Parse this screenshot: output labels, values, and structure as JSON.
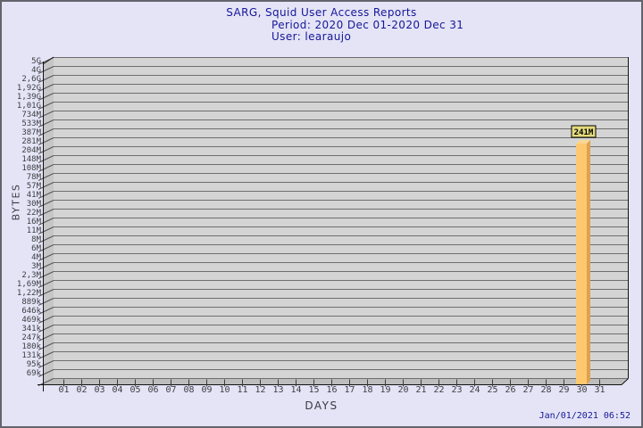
{
  "header": {
    "title": "SARG, Squid User Access Reports",
    "period": "Period: 2020 Dec 01-2020 Dec 31",
    "user": "User: learaujo"
  },
  "footer": {
    "generated": "Jan/01/2021 06:52"
  },
  "chart_data": {
    "type": "bar",
    "title": "SARG, Squid User Access Reports",
    "subtitle": [
      "Period: 2020 Dec 01-2020 Dec 31",
      "User: learaujo"
    ],
    "xlabel": "DAYS",
    "ylabel": "BYTES",
    "y_scale": "log",
    "grid": true,
    "x_labels": [
      "01",
      "02",
      "03",
      "04",
      "05",
      "06",
      "07",
      "08",
      "09",
      "10",
      "11",
      "12",
      "13",
      "14",
      "15",
      "16",
      "17",
      "18",
      "19",
      "20",
      "21",
      "22",
      "23",
      "24",
      "25",
      "26",
      "27",
      "28",
      "29",
      "30",
      "31"
    ],
    "y_axis_labels": [
      "5G",
      "4G",
      "2,6G",
      "1,92G",
      "1,39G",
      "1,01G",
      "734M",
      "533M",
      "387M",
      "281M",
      "204M",
      "148M",
      "108M",
      "78M",
      "57M",
      "41M",
      "30M",
      "22M",
      "16M",
      "11M",
      "8M",
      "6M",
      "4M",
      "3M",
      "2,3M",
      "1,69M",
      "1,22M",
      "889k",
      "646k",
      "469k",
      "341k",
      "247k",
      "180k",
      "131k",
      "95k",
      "69k"
    ],
    "ylim_bytes": [
      69000,
      5000000000
    ],
    "bars": [
      {
        "day": "30",
        "value_label": "241M",
        "value_bytes": 241000000
      }
    ],
    "colors": {
      "background": "#E4E4F6",
      "title_color": "#16169A",
      "plot_bg": "#D4D4D4",
      "grid_line": "#6E6E6E",
      "wall": "#C6C6C6",
      "floor": "#BDBDBD",
      "axis_line": "#111111",
      "tick_text": "#3C3C42",
      "bar_front": "#FDC870",
      "bar_side": "#DFA24B",
      "bar_top": "#F9D795",
      "annotation_bg": "#E4DA7E",
      "annotation_border": "#000000",
      "annotation_text": "#000000"
    }
  }
}
